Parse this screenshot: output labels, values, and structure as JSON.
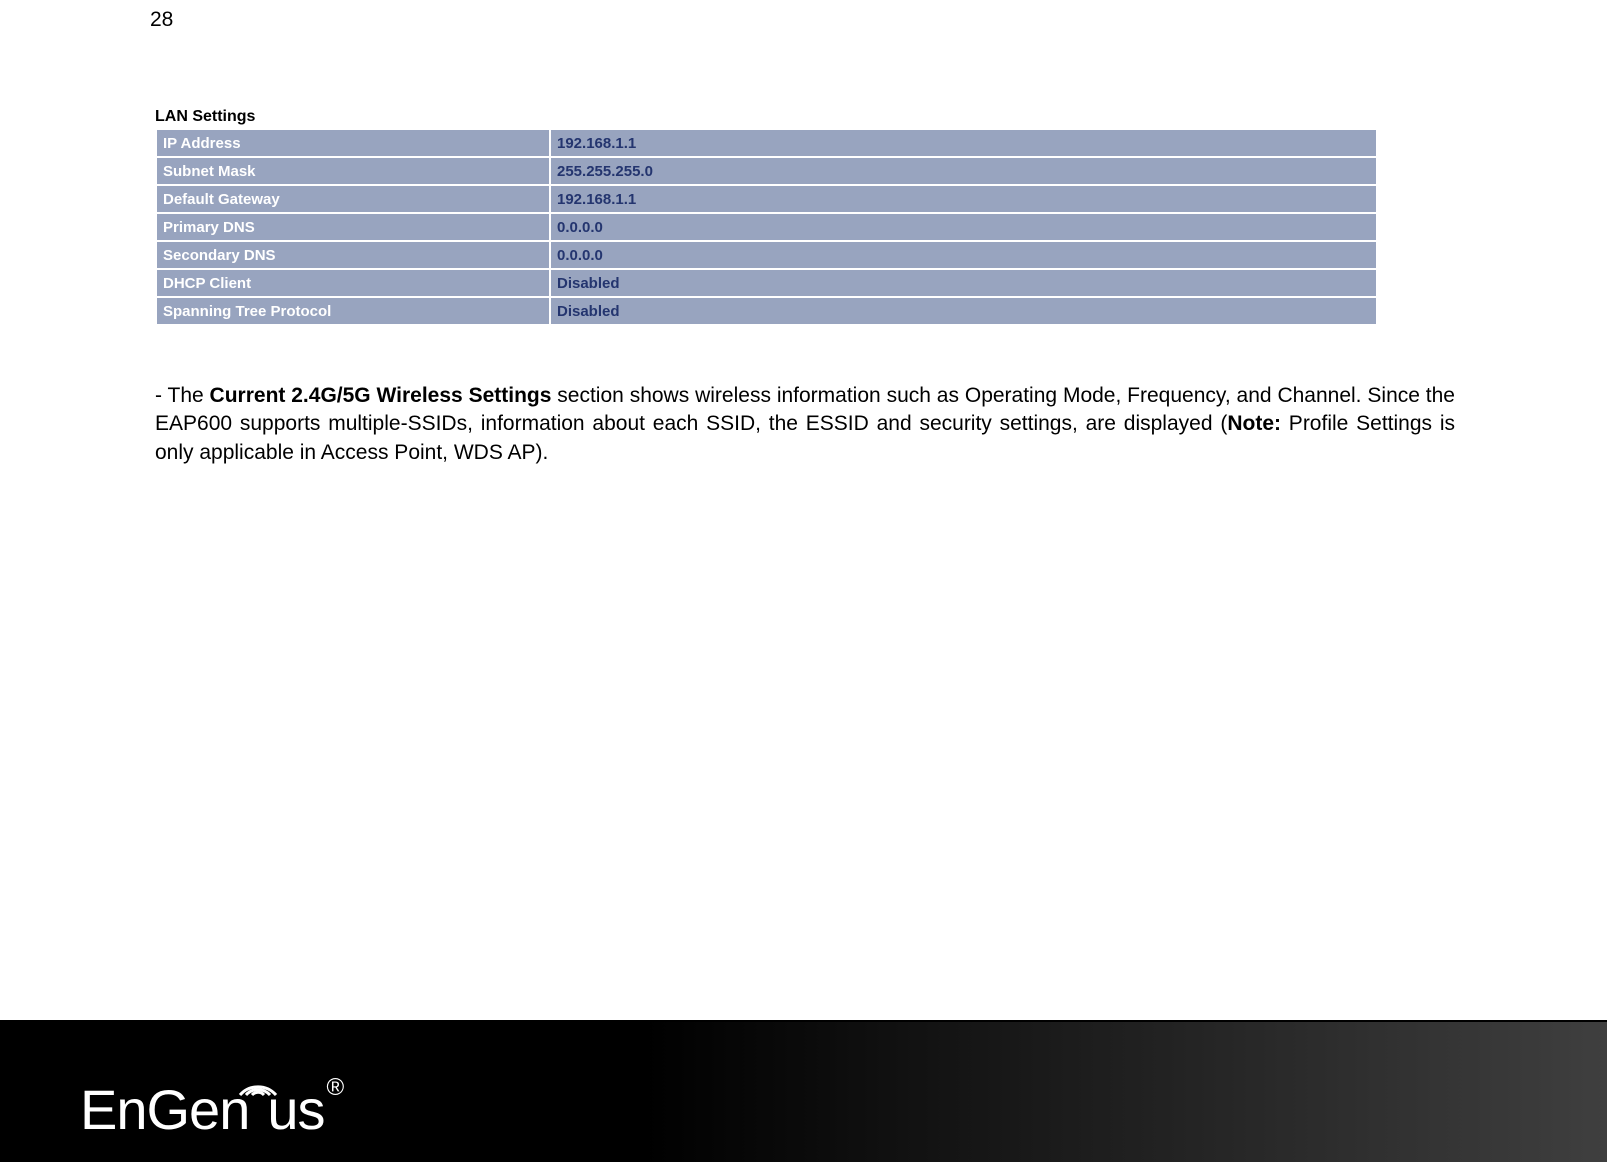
{
  "page_number": "28",
  "lan_table": {
    "title": "LAN Settings",
    "row_bg_color": "#98a4bf",
    "label_text_color": "#ffffff",
    "value_text_color": "#24356f",
    "rows": [
      {
        "label": "IP Address",
        "value": "192.168.1.1"
      },
      {
        "label": "Subnet Mask",
        "value": "255.255.255.0"
      },
      {
        "label": "Default Gateway",
        "value": "192.168.1.1"
      },
      {
        "label": "Primary DNS",
        "value": "0.0.0.0"
      },
      {
        "label": "Secondary DNS",
        "value": "0.0.0.0"
      },
      {
        "label": "DHCP Client",
        "value": "Disabled"
      },
      {
        "label": "Spanning Tree Protocol",
        "value": "Disabled"
      }
    ]
  },
  "paragraph": {
    "prefix": "-  The ",
    "bold1": "Current 2.4G/5G Wireless Settings",
    "mid1": " section shows wireless information such as Operating Mode, Frequency, and Channel. Since the EAP600 supports multiple-SSIDs, information about each SSID, the ESSID and security settings, are displayed (",
    "bold2": "Note:",
    "suffix": " Profile Settings is only applicable in Access Point, WDS AP)."
  },
  "footer": {
    "logo_text_1": "EnGen",
    "logo_text_2": "us",
    "logo_sup": "®",
    "bg_gradient_from": "#000000",
    "bg_gradient_to": "#3f3f3f"
  }
}
